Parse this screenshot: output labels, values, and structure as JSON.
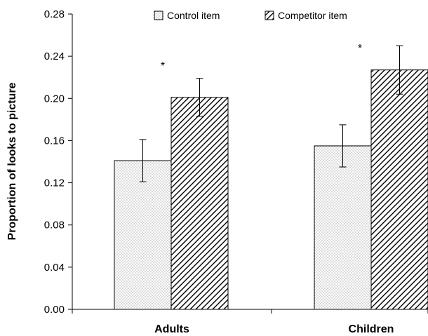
{
  "chart_data": {
    "type": "bar",
    "categories": [
      "Adults",
      "Children"
    ],
    "series": [
      {
        "name": "Control item",
        "values": [
          0.141,
          0.155
        ],
        "error": [
          0.02,
          0.02
        ],
        "pattern": "dots"
      },
      {
        "name": "Competitor item",
        "values": [
          0.201,
          0.227
        ],
        "error": [
          0.018,
          0.023
        ],
        "pattern": "diagonal-hatch"
      }
    ],
    "significance_marks": [
      "*",
      "*"
    ],
    "ylabel": "Proportion of looks to picture",
    "xlabel": "",
    "ylim": [
      0,
      0.28
    ],
    "yticks": [
      "0.00",
      "0.04",
      "0.08",
      "0.12",
      "0.16",
      "0.20",
      "0.24",
      "0.28"
    ],
    "grid": false,
    "legend_position": "top"
  },
  "colors": {
    "bar_fill": "#ffffff",
    "bar_stroke": "#000000",
    "pattern_color": "#000000"
  }
}
